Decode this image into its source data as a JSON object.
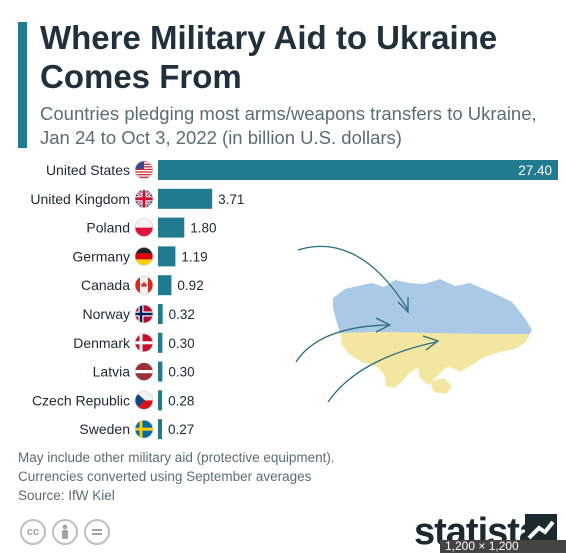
{
  "title": "Where Military Aid to Ukraine Comes From",
  "subtitle": "Countries pledging most arms/weapons transfers to Ukraine, Jan 24 to Oct 3, 2022 (in billion U.S. dollars)",
  "notes": [
    "May include other military aid (protective equipment).",
    "Currencies converted using September averages",
    "Source: IfW Kiel"
  ],
  "brand": "statista",
  "image_size_label": "1,200 × 1,200",
  "license_icons": [
    "cc-icon",
    "attribution-icon",
    "no-derivatives-icon"
  ],
  "colors": {
    "bar": "#217a8f",
    "accent": "#217a8f",
    "ukraine_blue": "#a9c9e6",
    "ukraine_yellow": "#f3e6a0",
    "arrow": "#2a6c80"
  },
  "chart_data": {
    "type": "bar",
    "orientation": "horizontal",
    "categories": [
      "United States",
      "United Kingdom",
      "Poland",
      "Germany",
      "Canada",
      "Norway",
      "Denmark",
      "Latvia",
      "Czech Republic",
      "Sweden"
    ],
    "values": [
      27.4,
      3.71,
      1.8,
      1.19,
      0.92,
      0.32,
      0.3,
      0.3,
      0.28,
      0.27
    ],
    "value_labels": [
      "27.40",
      "3.71",
      "1.80",
      "1.19",
      "0.92",
      "0.32",
      "0.30",
      "0.30",
      "0.28",
      "0.27"
    ],
    "flags": [
      "us",
      "uk",
      "pl",
      "de",
      "ca",
      "no",
      "dk",
      "lv",
      "cz",
      "se"
    ],
    "xlim": [
      0,
      27.4
    ],
    "grid": false,
    "legend": "none"
  }
}
